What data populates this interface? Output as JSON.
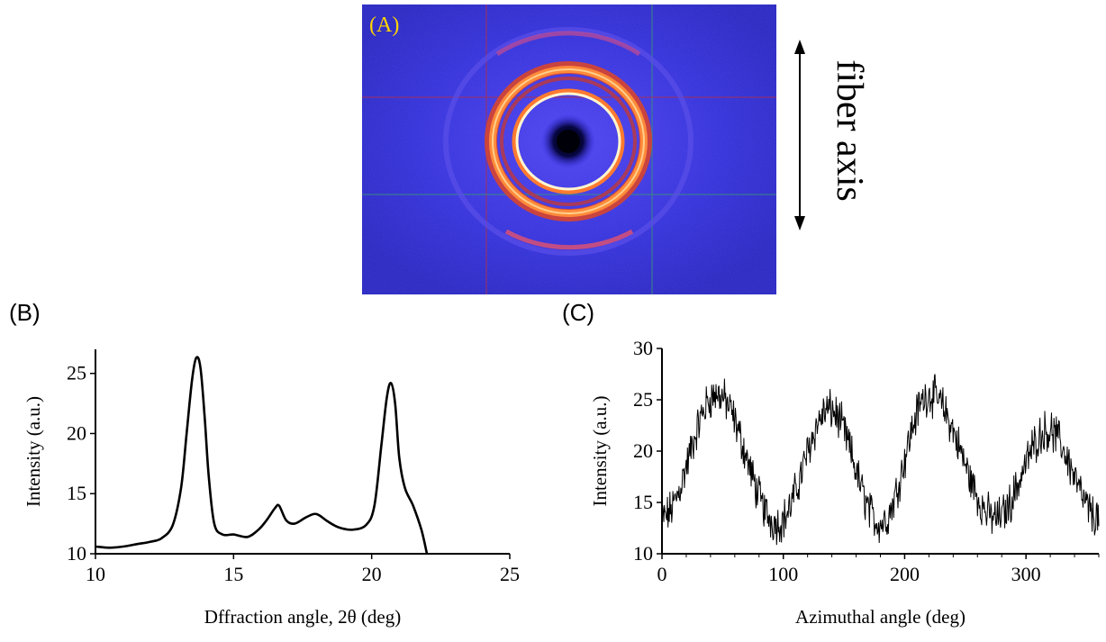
{
  "diffraction_image": {
    "panel_label": "(A)",
    "direction_label": "fiber axis",
    "colors": {
      "background": "#2a2ad0",
      "ring": "#ff7a30",
      "ring_core": "#fff4c8",
      "label": "#ffd400"
    }
  },
  "chart_data": [
    {
      "panel_label": "(B)",
      "type": "line",
      "title": "",
      "xlabel": "Dffraction  angle, 2θ (deg)",
      "ylabel": "Intensity (a.u.)",
      "xlim": [
        10,
        25
      ],
      "ylim": [
        10,
        27
      ],
      "xticks": [
        10,
        15,
        20,
        25
      ],
      "yticks": [
        10,
        15,
        20,
        25
      ],
      "x": [
        10.0,
        10.5,
        11.0,
        11.5,
        12.0,
        12.4,
        12.8,
        13.1,
        13.3,
        13.5,
        13.65,
        13.8,
        13.95,
        14.1,
        14.3,
        14.6,
        15.0,
        15.5,
        15.9,
        16.2,
        16.5,
        16.65,
        16.9,
        17.2,
        17.6,
        17.9,
        18.1,
        18.4,
        18.8,
        19.3,
        19.8,
        20.1,
        20.35,
        20.55,
        20.7,
        20.85,
        21.0,
        21.2,
        21.5,
        21.8,
        22.0
      ],
      "values": [
        10.6,
        10.5,
        10.6,
        10.8,
        11.0,
        11.3,
        12.4,
        15.5,
        20.0,
        24.5,
        26.3,
        25.5,
        21.5,
        16.5,
        12.5,
        11.6,
        11.6,
        11.4,
        12.0,
        12.8,
        13.8,
        14.0,
        12.8,
        12.5,
        13.0,
        13.3,
        13.2,
        12.7,
        12.2,
        12.0,
        12.4,
        14.0,
        19.0,
        23.0,
        24.2,
        22.5,
        18.0,
        15.5,
        14.0,
        12.0,
        10.0
      ],
      "line_color": "#000000"
    },
    {
      "panel_label": "(C)",
      "type": "line",
      "title": "",
      "xlabel": "Azimuthal angle (deg)",
      "ylabel": "Intensity (a.u.)",
      "xlim": [
        0,
        360
      ],
      "ylim": [
        10,
        30
      ],
      "xticks": [
        0,
        100,
        200,
        300
      ],
      "yticks": [
        10,
        15,
        20,
        25,
        30
      ],
      "peaks": [
        {
          "center": 45,
          "height": 25.5
        },
        {
          "center": 138,
          "height": 24.0
        },
        {
          "center": 220,
          "height": 25.5
        },
        {
          "center": 318,
          "height": 22.0
        }
      ],
      "minima": [
        {
          "x": 0,
          "value": 13.5
        },
        {
          "x": 95,
          "value": 13.0
        },
        {
          "x": 180,
          "value": 13.0
        },
        {
          "x": 275,
          "value": 13.5
        },
        {
          "x": 360,
          "value": 13.5
        }
      ],
      "noise_amplitude": 1.6,
      "line_color": "#000000"
    }
  ]
}
